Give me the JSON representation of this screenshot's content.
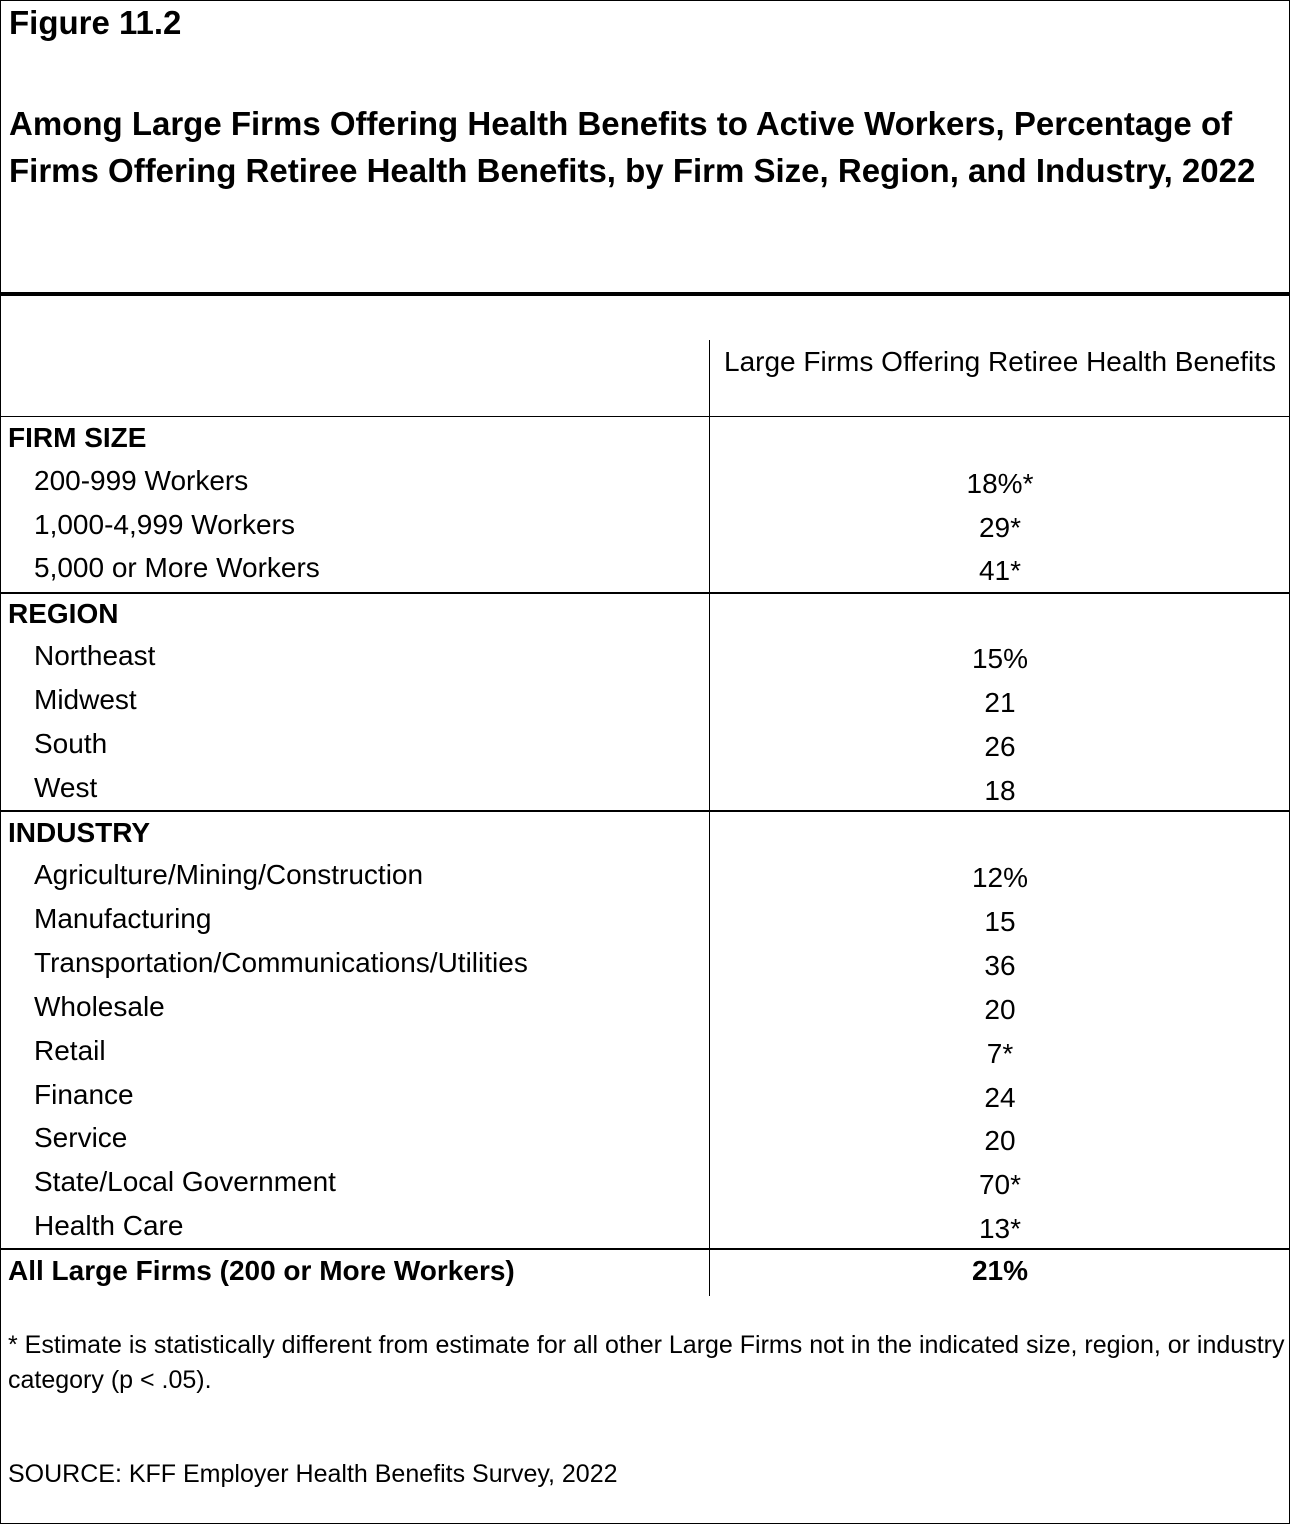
{
  "figure_label": "Figure 11.2",
  "title": "Among Large Firms Offering Health Benefits to Active Workers, Percentage of Firms Offering Retiree Health Benefits, by Firm Size, Region, and Industry, 2022",
  "chart_data": {
    "type": "table",
    "column_header": "Large Firms Offering Retiree Health Benefits",
    "sections": [
      {
        "name": "FIRM SIZE",
        "rows": [
          {
            "label": "200-999 Workers",
            "display": "18%*",
            "value": 18,
            "significant": true
          },
          {
            "label": "1,000-4,999 Workers",
            "display": "29*",
            "value": 29,
            "significant": true
          },
          {
            "label": "5,000 or More Workers",
            "display": "41*",
            "value": 41,
            "significant": true
          }
        ]
      },
      {
        "name": "REGION",
        "rows": [
          {
            "label": "Northeast",
            "display": "15%",
            "value": 15,
            "significant": false
          },
          {
            "label": "Midwest",
            "display": "21",
            "value": 21,
            "significant": false
          },
          {
            "label": "South",
            "display": "26",
            "value": 26,
            "significant": false
          },
          {
            "label": "West",
            "display": "18",
            "value": 18,
            "significant": false
          }
        ]
      },
      {
        "name": "INDUSTRY",
        "rows": [
          {
            "label": "Agriculture/Mining/Construction",
            "display": "12%",
            "value": 12,
            "significant": false
          },
          {
            "label": "Manufacturing",
            "display": "15",
            "value": 15,
            "significant": false
          },
          {
            "label": "Transportation/Communications/Utilities",
            "display": "36",
            "value": 36,
            "significant": false
          },
          {
            "label": "Wholesale",
            "display": "20",
            "value": 20,
            "significant": false
          },
          {
            "label": "Retail",
            "display": "7*",
            "value": 7,
            "significant": true
          },
          {
            "label": "Finance",
            "display": "24",
            "value": 24,
            "significant": false
          },
          {
            "label": "Service",
            "display": "20",
            "value": 20,
            "significant": false
          },
          {
            "label": "State/Local Government",
            "display": "70*",
            "value": 70,
            "significant": true
          },
          {
            "label": "Health Care",
            "display": "13*",
            "value": 13,
            "significant": true
          }
        ]
      }
    ],
    "total": {
      "label": "All Large Firms (200 or More Workers)",
      "display": "21%",
      "value": 21
    }
  },
  "footnote": " * Estimate is statistically different from estimate for all other Large Firms not in the indicated size, region, or industry category (p < .05).",
  "source": "SOURCE: KFF Employer Health Benefits Survey, 2022"
}
